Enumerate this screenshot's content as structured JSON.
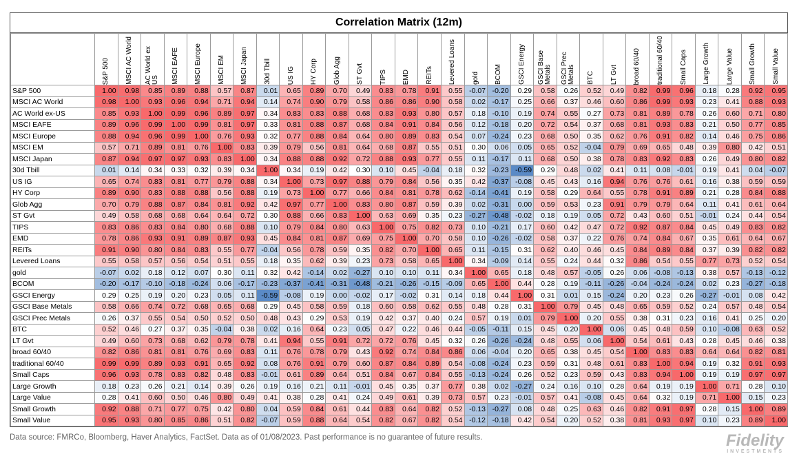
{
  "title": "Correlation Matrix (12m)",
  "columns": [
    "S&P 500",
    "MSCI AC World",
    "AC World ex US",
    "MSCI EAFE",
    "MSCI Europe",
    "MSCI EM",
    "MSCI Japan",
    "30d Tbill",
    "US IG",
    "HY Corp",
    "Glob Agg",
    "ST Gvt",
    "TIPS",
    "EMD",
    "REITs",
    "Levered Loans",
    "gold",
    "BCOM",
    "GSCI Energy",
    "GSCI Base Metals",
    "GSCI Prec Metals",
    "BTC",
    "LT Gvt",
    "broad 60/40",
    "traditional 60/40",
    "Small Caps",
    "Large Growth",
    "Large Value",
    "Small Growth",
    "Small Value"
  ],
  "rows": [
    {
      "label": "S&P 500",
      "values": [
        "1.00",
        "0.98",
        "0.85",
        "0.89",
        "0.88",
        "0.57",
        "0.87",
        "0.01",
        "0.65",
        "0.89",
        "0.70",
        "0.49",
        "0.83",
        "0.78",
        "0.91",
        "0.55",
        "-0.07",
        "-0.20",
        "0.29",
        "0.58",
        "0.26",
        "0.52",
        "0.49",
        "0.82",
        "0.99",
        "0.96",
        "0.18",
        "0.28",
        "0.92",
        "0.95"
      ]
    },
    {
      "label": "MSCI AC World",
      "values": [
        "0.98",
        "1.00",
        "0.93",
        "0.96",
        "0.94",
        "0.71",
        "0.94",
        "0.14",
        "0.74",
        "0.90",
        "0.79",
        "0.58",
        "0.86",
        "0.86",
        "0.90",
        "0.58",
        "0.02",
        "-0.17",
        "0.25",
        "0.66",
        "0.37",
        "0.46",
        "0.60",
        "0.86",
        "0.99",
        "0.93",
        "0.23",
        "0.41",
        "0.88",
        "0.93"
      ]
    },
    {
      "label": "AC World ex-US",
      "values": [
        "0.85",
        "0.93",
        "1.00",
        "0.99",
        "0.96",
        "0.89",
        "0.97",
        "0.34",
        "0.83",
        "0.83",
        "0.88",
        "0.68",
        "0.83",
        "0.93",
        "0.80",
        "0.57",
        "0.18",
        "-0.10",
        "0.19",
        "0.74",
        "0.55",
        "0.27",
        "0.73",
        "0.81",
        "0.89",
        "0.78",
        "0.26",
        "0.60",
        "0.71",
        "0.80"
      ]
    },
    {
      "label": "MSCI EAFE",
      "values": [
        "0.89",
        "0.96",
        "0.99",
        "1.00",
        "0.99",
        "0.81",
        "0.97",
        "0.33",
        "0.81",
        "0.88",
        "0.87",
        "0.68",
        "0.84",
        "0.91",
        "0.84",
        "0.56",
        "0.12",
        "-0.18",
        "0.20",
        "0.72",
        "0.54",
        "0.37",
        "0.68",
        "0.81",
        "0.93",
        "0.83",
        "0.21",
        "0.50",
        "0.77",
        "0.85"
      ]
    },
    {
      "label": "MSCI Europe",
      "values": [
        "0.88",
        "0.94",
        "0.96",
        "0.99",
        "1.00",
        "0.76",
        "0.93",
        "0.32",
        "0.77",
        "0.88",
        "0.84",
        "0.64",
        "0.80",
        "0.89",
        "0.83",
        "0.54",
        "0.07",
        "-0.24",
        "0.23",
        "0.68",
        "0.50",
        "0.35",
        "0.62",
        "0.76",
        "0.91",
        "0.82",
        "0.14",
        "0.46",
        "0.75",
        "0.86"
      ]
    },
    {
      "label": "MSCI EM",
      "values": [
        "0.57",
        "0.71",
        "0.89",
        "0.81",
        "0.76",
        "1.00",
        "0.83",
        "0.39",
        "0.79",
        "0.56",
        "0.81",
        "0.64",
        "0.68",
        "0.87",
        "0.55",
        "0.51",
        "0.30",
        "0.06",
        "0.05",
        "0.65",
        "0.52",
        "-0.04",
        "0.79",
        "0.69",
        "0.65",
        "0.48",
        "0.39",
        "0.80",
        "0.42",
        "0.51"
      ]
    },
    {
      "label": "MSCI Japan",
      "values": [
        "0.87",
        "0.94",
        "0.97",
        "0.97",
        "0.93",
        "0.83",
        "1.00",
        "0.34",
        "0.88",
        "0.88",
        "0.92",
        "0.72",
        "0.88",
        "0.93",
        "0.77",
        "0.55",
        "0.11",
        "-0.17",
        "0.11",
        "0.68",
        "0.50",
        "0.38",
        "0.78",
        "0.83",
        "0.92",
        "0.83",
        "0.26",
        "0.49",
        "0.80",
        "0.82"
      ]
    },
    {
      "label": "30d Tbill",
      "values": [
        "0.01",
        "0.14",
        "0.34",
        "0.33",
        "0.32",
        "0.39",
        "0.34",
        "1.00",
        "0.34",
        "0.19",
        "0.42",
        "0.30",
        "0.10",
        "0.45",
        "-0.04",
        "0.18",
        "0.32",
        "-0.23",
        "-0.59",
        "0.29",
        "0.48",
        "0.02",
        "0.41",
        "0.11",
        "0.08",
        "-0.01",
        "0.19",
        "0.41",
        "0.04",
        "-0.07"
      ]
    },
    {
      "label": "US IG",
      "values": [
        "0.65",
        "0.74",
        "0.83",
        "0.81",
        "0.77",
        "0.79",
        "0.88",
        "0.34",
        "1.00",
        "0.73",
        "0.97",
        "0.88",
        "0.79",
        "0.84",
        "0.56",
        "0.35",
        "0.42",
        "-0.37",
        "-0.08",
        "0.45",
        "0.43",
        "0.16",
        "0.94",
        "0.76",
        "0.76",
        "0.61",
        "0.16",
        "0.38",
        "0.59",
        "0.59"
      ]
    },
    {
      "label": "HY Corp",
      "values": [
        "0.89",
        "0.90",
        "0.83",
        "0.88",
        "0.88",
        "0.56",
        "0.88",
        "0.19",
        "0.73",
        "1.00",
        "0.77",
        "0.66",
        "0.84",
        "0.81",
        "0.78",
        "0.62",
        "-0.14",
        "-0.41",
        "0.19",
        "0.58",
        "0.29",
        "0.64",
        "0.55",
        "0.78",
        "0.91",
        "0.89",
        "0.21",
        "0.28",
        "0.84",
        "0.88"
      ]
    },
    {
      "label": "Glob Agg",
      "values": [
        "0.70",
        "0.79",
        "0.88",
        "0.87",
        "0.84",
        "0.81",
        "0.92",
        "0.42",
        "0.97",
        "0.77",
        "1.00",
        "0.83",
        "0.80",
        "0.87",
        "0.59",
        "0.39",
        "0.02",
        "-0.31",
        "0.00",
        "0.59",
        "0.53",
        "0.23",
        "0.91",
        "0.79",
        "0.79",
        "0.64",
        "0.11",
        "0.41",
        "0.61",
        "0.64"
      ]
    },
    {
      "label": "ST Gvt",
      "values": [
        "0.49",
        "0.58",
        "0.68",
        "0.68",
        "0.64",
        "0.64",
        "0.72",
        "0.30",
        "0.88",
        "0.66",
        "0.83",
        "1.00",
        "0.63",
        "0.69",
        "0.35",
        "0.23",
        "-0.27",
        "-0.48",
        "-0.02",
        "0.18",
        "0.19",
        "0.05",
        "0.72",
        "0.43",
        "0.60",
        "0.51",
        "-0.01",
        "0.24",
        "0.44",
        "0.54"
      ]
    },
    {
      "label": "TIPS",
      "values": [
        "0.83",
        "0.86",
        "0.83",
        "0.84",
        "0.80",
        "0.68",
        "0.88",
        "0.10",
        "0.79",
        "0.84",
        "0.80",
        "0.63",
        "1.00",
        "0.75",
        "0.82",
        "0.73",
        "0.10",
        "-0.21",
        "0.17",
        "0.60",
        "0.42",
        "0.47",
        "0.72",
        "0.92",
        "0.87",
        "0.84",
        "0.45",
        "0.49",
        "0.83",
        "0.82"
      ]
    },
    {
      "label": "EMD",
      "values": [
        "0.78",
        "0.86",
        "0.93",
        "0.91",
        "0.89",
        "0.87",
        "0.93",
        "0.45",
        "0.84",
        "0.81",
        "0.87",
        "0.69",
        "0.75",
        "1.00",
        "0.70",
        "0.58",
        "0.10",
        "-0.26",
        "-0.02",
        "0.58",
        "0.37",
        "0.22",
        "0.76",
        "0.74",
        "0.84",
        "0.67",
        "0.35",
        "0.61",
        "0.64",
        "0.67"
      ]
    },
    {
      "label": "REITs",
      "values": [
        "0.91",
        "0.90",
        "0.80",
        "0.84",
        "0.83",
        "0.55",
        "0.77",
        "-0.04",
        "0.56",
        "0.78",
        "0.59",
        "0.35",
        "0.82",
        "0.70",
        "1.00",
        "0.65",
        "0.11",
        "-0.15",
        "0.31",
        "0.62",
        "0.40",
        "0.46",
        "0.45",
        "0.84",
        "0.89",
        "0.84",
        "0.37",
        "0.39",
        "0.82",
        "0.82"
      ]
    },
    {
      "label": "Levered Loans",
      "values": [
        "0.55",
        "0.58",
        "0.57",
        "0.56",
        "0.54",
        "0.51",
        "0.55",
        "0.18",
        "0.35",
        "0.62",
        "0.39",
        "0.23",
        "0.73",
        "0.58",
        "0.65",
        "1.00",
        "0.34",
        "-0.09",
        "0.14",
        "0.55",
        "0.24",
        "0.44",
        "0.32",
        "0.86",
        "0.54",
        "0.55",
        "0.77",
        "0.73",
        "0.52",
        "0.54"
      ]
    },
    {
      "label": "gold",
      "values": [
        "-0.07",
        "0.02",
        "0.18",
        "0.12",
        "0.07",
        "0.30",
        "0.11",
        "0.32",
        "0.42",
        "-0.14",
        "0.02",
        "-0.27",
        "0.10",
        "0.10",
        "0.11",
        "0.34",
        "1.00",
        "0.65",
        "0.18",
        "0.48",
        "0.57",
        "-0.05",
        "0.26",
        "0.06",
        "-0.08",
        "-0.13",
        "0.38",
        "0.57",
        "-0.13",
        "-0.12"
      ]
    },
    {
      "label": "BCOM",
      "values": [
        "-0.20",
        "-0.17",
        "-0.10",
        "-0.18",
        "-0.24",
        "0.06",
        "-0.17",
        "-0.23",
        "-0.37",
        "-0.41",
        "-0.31",
        "-0.48",
        "-0.21",
        "-0.26",
        "-0.15",
        "-0.09",
        "0.65",
        "1.00",
        "0.44",
        "0.28",
        "0.19",
        "-0.11",
        "-0.26",
        "-0.04",
        "-0.24",
        "-0.24",
        "0.02",
        "0.23",
        "-0.27",
        "-0.18"
      ]
    },
    {
      "label": "GSCI Energy",
      "values": [
        "0.29",
        "0.25",
        "0.19",
        "0.20",
        "0.23",
        "0.05",
        "0.11",
        "-0.59",
        "-0.08",
        "0.19",
        "0.00",
        "-0.02",
        "0.17",
        "-0.02",
        "0.31",
        "0.14",
        "0.18",
        "0.44",
        "1.00",
        "0.31",
        "0.01",
        "0.15",
        "-0.24",
        "0.20",
        "0.23",
        "0.26",
        "-0.27",
        "-0.01",
        "0.08",
        "0.42"
      ]
    },
    {
      "label": "GSCI Base Metals",
      "values": [
        "0.58",
        "0.66",
        "0.74",
        "0.72",
        "0.68",
        "0.65",
        "0.68",
        "0.29",
        "0.45",
        "0.58",
        "0.59",
        "0.18",
        "0.60",
        "0.58",
        "0.62",
        "0.55",
        "0.48",
        "0.28",
        "0.31",
        "1.00",
        "0.79",
        "0.45",
        "0.48",
        "0.65",
        "0.59",
        "0.52",
        "0.24",
        "0.57",
        "0.48",
        "0.54"
      ]
    },
    {
      "label": "GSCI Prec Metals",
      "values": [
        "0.26",
        "0.37",
        "0.55",
        "0.54",
        "0.50",
        "0.52",
        "0.50",
        "0.48",
        "0.43",
        "0.29",
        "0.53",
        "0.19",
        "0.42",
        "0.37",
        "0.40",
        "0.24",
        "0.57",
        "0.19",
        "0.01",
        "0.79",
        "1.00",
        "0.20",
        "0.55",
        "0.38",
        "0.31",
        "0.23",
        "0.16",
        "0.41",
        "0.25",
        "0.20"
      ]
    },
    {
      "label": "BTC",
      "values": [
        "0.52",
        "0.46",
        "0.27",
        "0.37",
        "0.35",
        "-0.04",
        "0.38",
        "0.02",
        "0.16",
        "0.64",
        "0.23",
        "0.05",
        "0.47",
        "0.22",
        "0.46",
        "0.44",
        "-0.05",
        "-0.11",
        "0.15",
        "0.45",
        "0.20",
        "1.00",
        "0.06",
        "0.45",
        "0.48",
        "0.59",
        "0.10",
        "-0.08",
        "0.63",
        "0.52"
      ]
    },
    {
      "label": "LT Gvt",
      "values": [
        "0.49",
        "0.60",
        "0.73",
        "0.68",
        "0.62",
        "0.79",
        "0.78",
        "0.41",
        "0.94",
        "0.55",
        "0.91",
        "0.72",
        "0.72",
        "0.76",
        "0.45",
        "0.32",
        "0.26",
        "-0.26",
        "-0.24",
        "0.48",
        "0.55",
        "0.06",
        "1.00",
        "0.54",
        "0.61",
        "0.43",
        "0.28",
        "0.45",
        "0.46",
        "0.38"
      ]
    },
    {
      "label": "broad 60/40",
      "values": [
        "0.82",
        "0.86",
        "0.81",
        "0.81",
        "0.76",
        "0.69",
        "0.83",
        "0.11",
        "0.76",
        "0.78",
        "0.79",
        "0.43",
        "0.92",
        "0.74",
        "0.84",
        "0.86",
        "0.06",
        "-0.04",
        "0.20",
        "0.65",
        "0.38",
        "0.45",
        "0.54",
        "1.00",
        "0.83",
        "0.83",
        "0.64",
        "0.64",
        "0.82",
        "0.81"
      ]
    },
    {
      "label": "traditional 60/40",
      "values": [
        "0.99",
        "0.99",
        "0.89",
        "0.93",
        "0.91",
        "0.65",
        "0.92",
        "0.08",
        "0.76",
        "0.91",
        "0.79",
        "0.60",
        "0.87",
        "0.84",
        "0.89",
        "0.54",
        "-0.08",
        "-0.24",
        "0.23",
        "0.59",
        "0.31",
        "0.48",
        "0.61",
        "0.83",
        "1.00",
        "0.94",
        "0.19",
        "0.32",
        "0.91",
        "0.93"
      ]
    },
    {
      "label": "Small Caps",
      "values": [
        "0.96",
        "0.93",
        "0.78",
        "0.83",
        "0.82",
        "0.48",
        "0.83",
        "-0.01",
        "0.61",
        "0.89",
        "0.64",
        "0.51",
        "0.84",
        "0.67",
        "0.84",
        "0.55",
        "-0.13",
        "-0.24",
        "0.26",
        "0.52",
        "0.23",
        "0.59",
        "0.43",
        "0.83",
        "0.94",
        "1.00",
        "0.19",
        "0.19",
        "0.97",
        "0.97"
      ]
    },
    {
      "label": "Large Growth",
      "values": [
        "0.18",
        "0.23",
        "0.26",
        "0.21",
        "0.14",
        "0.39",
        "0.26",
        "0.19",
        "0.16",
        "0.21",
        "0.11",
        "-0.01",
        "0.45",
        "0.35",
        "0.37",
        "0.77",
        "0.38",
        "0.02",
        "-0.27",
        "0.24",
        "0.16",
        "0.10",
        "0.28",
        "0.64",
        "0.19",
        "0.19",
        "1.00",
        "0.71",
        "0.28",
        "0.10"
      ]
    },
    {
      "label": "Large Value",
      "values": [
        "0.28",
        "0.41",
        "0.60",
        "0.50",
        "0.46",
        "0.80",
        "0.49",
        "0.41",
        "0.38",
        "0.28",
        "0.41",
        "0.24",
        "0.49",
        "0.61",
        "0.39",
        "0.73",
        "0.57",
        "0.23",
        "-0.01",
        "0.57",
        "0.41",
        "-0.08",
        "0.45",
        "0.64",
        "0.32",
        "0.19",
        "0.71",
        "1.00",
        "0.15",
        "0.23"
      ]
    },
    {
      "label": "Small Growth",
      "values": [
        "0.92",
        "0.88",
        "0.71",
        "0.77",
        "0.75",
        "0.42",
        "0.80",
        "0.04",
        "0.59",
        "0.84",
        "0.61",
        "0.44",
        "0.83",
        "0.64",
        "0.82",
        "0.52",
        "-0.13",
        "-0.27",
        "0.08",
        "0.48",
        "0.25",
        "0.63",
        "0.46",
        "0.82",
        "0.91",
        "0.97",
        "0.28",
        "0.15",
        "1.00",
        "0.89"
      ]
    },
    {
      "label": "Small Value",
      "values": [
        "0.95",
        "0.93",
        "0.80",
        "0.85",
        "0.86",
        "0.51",
        "0.82",
        "-0.07",
        "0.59",
        "0.88",
        "0.64",
        "0.54",
        "0.82",
        "0.67",
        "0.82",
        "0.54",
        "-0.12",
        "-0.18",
        "0.42",
        "0.54",
        "0.20",
        "0.52",
        "0.38",
        "0.81",
        "0.93",
        "0.97",
        "0.10",
        "0.23",
        "0.89",
        "1.00"
      ]
    }
  ],
  "footnote": "Data source: FMRCo, Bloomberg, Haver Analytics, FactSet. Data as of 01/08/2023. Past performance is no guarantee of future results.",
  "logo": {
    "name": "Fidelity",
    "sub": "INVESTMENTS"
  }
}
